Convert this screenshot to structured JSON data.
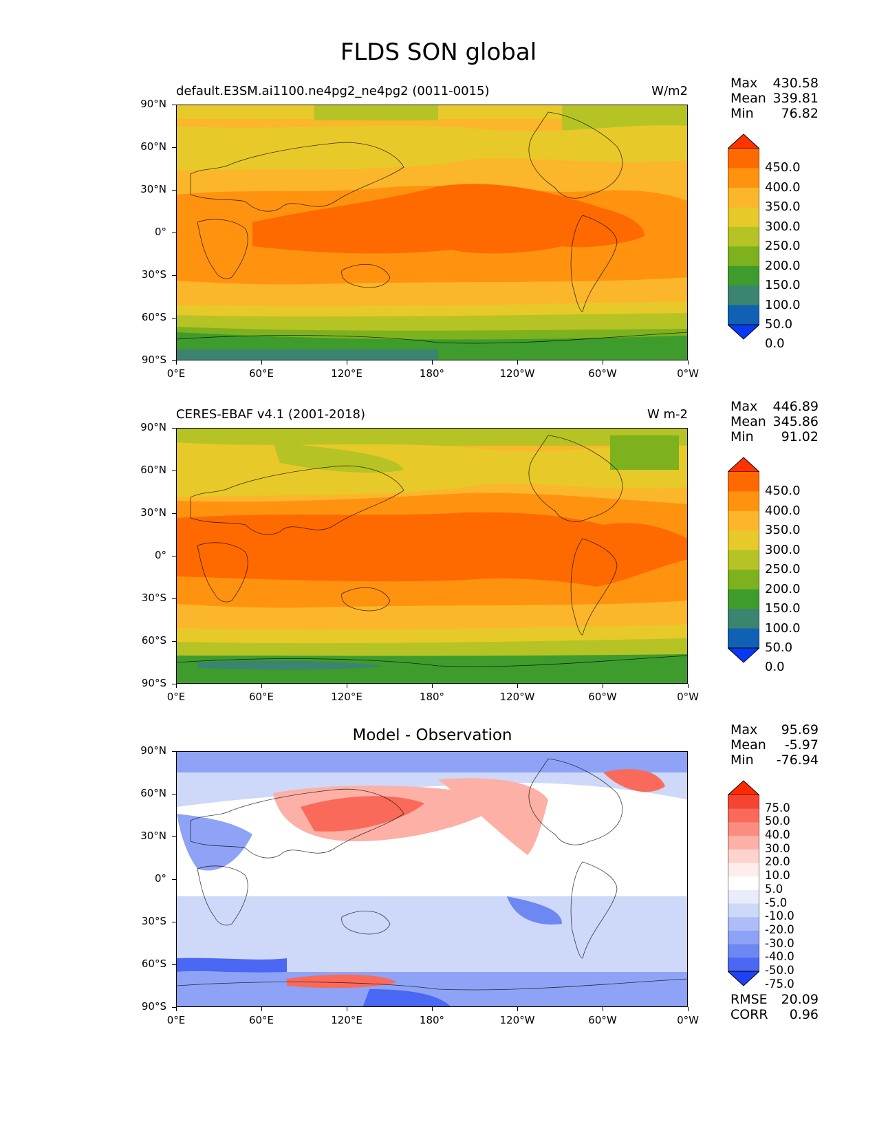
{
  "title": "FLDS SON global",
  "lat_ticks": [
    "90°N",
    "60°N",
    "30°N",
    "0°",
    "30°S",
    "60°S",
    "90°S"
  ],
  "lon_ticks": [
    "0°E",
    "60°E",
    "120°E",
    "180°",
    "120°W",
    "60°W",
    "0°W"
  ],
  "panels": [
    {
      "id": "model",
      "left_title": "default.E3SM.ai1100.ne4pg2_ne4pg2 (0011-0015)",
      "right_title": "W/m2",
      "center_title": "",
      "stats": [
        {
          "label": "Max",
          "value": "430.58"
        },
        {
          "label": "Mean",
          "value": "339.81"
        },
        {
          "label": "Min",
          "value": "76.82"
        }
      ],
      "colorbar_labels": [
        "450.0",
        "400.0",
        "350.0",
        "300.0",
        "250.0",
        "200.0",
        "150.0",
        "100.0",
        "50.0",
        "0.0"
      ],
      "colorbar_colors": [
        "#ff3300",
        "#ff6a00",
        "#ff9310",
        "#fbb62b",
        "#e8c92a",
        "#b6c324",
        "#7db21e",
        "#3e9c2c",
        "#3a8470",
        "#1061b4",
        "#0839f5"
      ]
    },
    {
      "id": "obs",
      "left_title": "CERES-EBAF v4.1 (2001-2018)",
      "right_title": "W m-2",
      "center_title": "",
      "stats": [
        {
          "label": "Max",
          "value": "446.89"
        },
        {
          "label": "Mean",
          "value": "345.86"
        },
        {
          "label": "Min",
          "value": "91.02"
        }
      ],
      "colorbar_labels": [
        "450.0",
        "400.0",
        "350.0",
        "300.0",
        "250.0",
        "200.0",
        "150.0",
        "100.0",
        "50.0",
        "0.0"
      ],
      "colorbar_colors": [
        "#ff3300",
        "#ff6a00",
        "#ff9310",
        "#fbb62b",
        "#e8c92a",
        "#b6c324",
        "#7db21e",
        "#3e9c2c",
        "#3a8470",
        "#1061b4",
        "#0839f5"
      ]
    },
    {
      "id": "diff",
      "left_title": "",
      "right_title": "",
      "center_title": "Model - Observation",
      "stats": [
        {
          "label": "Max",
          "value": "95.69"
        },
        {
          "label": "Mean",
          "value": "-5.97"
        },
        {
          "label": "Min",
          "value": "-76.94"
        }
      ],
      "colorbar_labels": [
        "75.0",
        "50.0",
        "40.0",
        "30.0",
        "20.0",
        "10.0",
        "5.0",
        "-5.0",
        "-10.0",
        "-20.0",
        "-30.0",
        "-40.0",
        "-50.0",
        "-75.0"
      ],
      "colorbar_colors": [
        "#ff2a00",
        "#f64433",
        "#fa6a5a",
        "#fb8d80",
        "#fcb0a6",
        "#fdd3cd",
        "#fdeeeb",
        "#ffffff",
        "#e9edfb",
        "#ced8f8",
        "#aebdf7",
        "#8ea3f5",
        "#6d87f3",
        "#4a68f3",
        "#1f42f5"
      ],
      "extra_stats": [
        {
          "label": "RMSE",
          "value": "20.09"
        },
        {
          "label": "CORR",
          "value": "0.96"
        }
      ]
    }
  ]
}
